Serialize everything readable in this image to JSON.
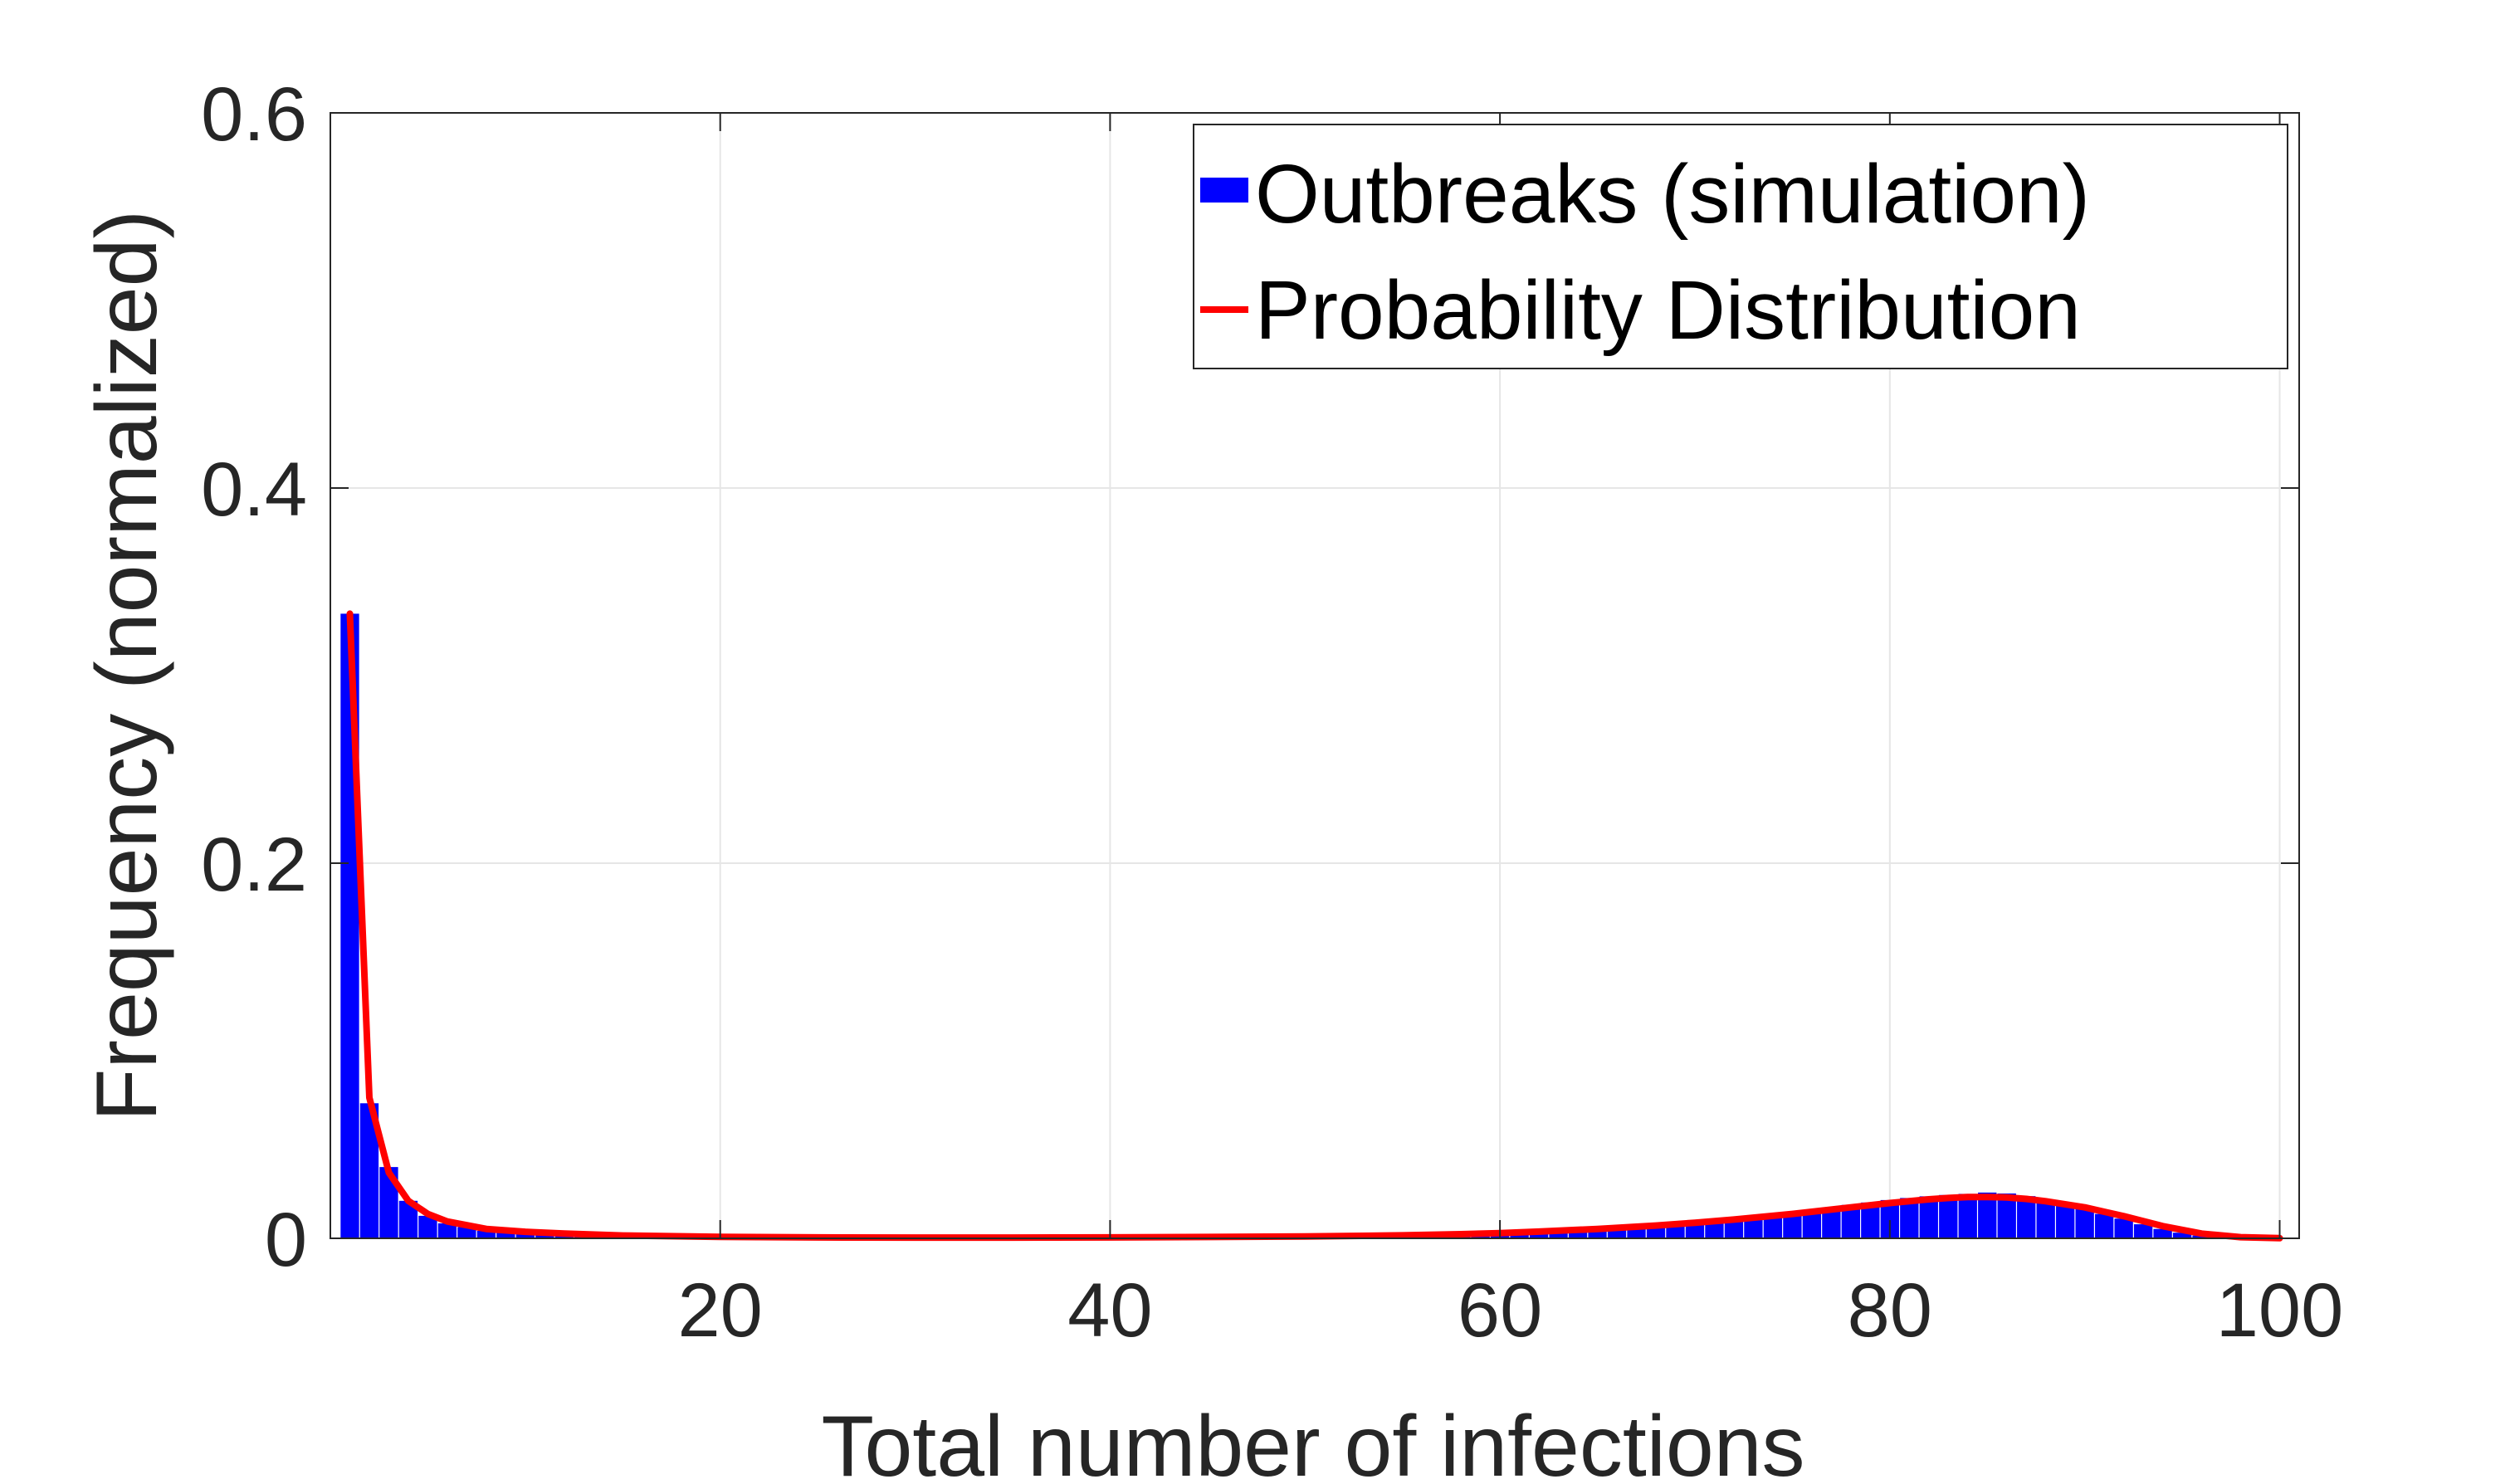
{
  "chart_data": {
    "type": "bar",
    "title": "",
    "xlabel": "Total number of infections",
    "ylabel": "Frequency (normalized)",
    "xlim": [
      0,
      101
    ],
    "ylim": [
      0,
      0.6
    ],
    "xticks": [
      "20",
      "40",
      "60",
      "80",
      "100"
    ],
    "yticks": [
      "0",
      "0.2",
      "0.4",
      "0.6"
    ],
    "grid": true,
    "legend_position": "top-right",
    "colors": {
      "bars": "#0000ff",
      "line": "#ff0000",
      "axis": "#262626",
      "grid": "#e6e6e6"
    },
    "series": [
      {
        "name": "Outbreaks (simulation)",
        "kind": "bar",
        "x": [
          1,
          2,
          3,
          4,
          5,
          6,
          7,
          8,
          9,
          10,
          11,
          12,
          13,
          14,
          15,
          16,
          17,
          18,
          19,
          20,
          21,
          22,
          23,
          24,
          25,
          26,
          27,
          28,
          29,
          30,
          31,
          32,
          33,
          34,
          35,
          36,
          37,
          38,
          39,
          40,
          41,
          42,
          43,
          44,
          45,
          46,
          47,
          48,
          49,
          50,
          51,
          52,
          53,
          54,
          55,
          56,
          57,
          58,
          59,
          60,
          61,
          62,
          63,
          64,
          65,
          66,
          67,
          68,
          69,
          70,
          71,
          72,
          73,
          74,
          75,
          76,
          77,
          78,
          79,
          80,
          81,
          82,
          83,
          84,
          85,
          86,
          87,
          88,
          89,
          90,
          91,
          92,
          93,
          94,
          95,
          96,
          97,
          98,
          99,
          100
        ],
        "values": [
          0.333,
          0.072,
          0.038,
          0.02,
          0.012,
          0.008,
          0.006,
          0.004,
          0.003,
          0.0025,
          0.002,
          0.0016,
          0.0013,
          0.001,
          0.0009,
          0.0008,
          0.0007,
          0.0006,
          0.0005,
          0.0004,
          0.0004,
          0.0003,
          0.0003,
          0.0003,
          0.0002,
          0.0002,
          0.0002,
          0.0002,
          0.0002,
          0.0002,
          0.0002,
          0.0002,
          0.0002,
          0.0002,
          0.0002,
          0.0002,
          0.0002,
          0.0002,
          0.0002,
          0.0003,
          0.0003,
          0.0003,
          0.0003,
          0.0004,
          0.0004,
          0.0005,
          0.0005,
          0.0006,
          0.0007,
          0.0008,
          0.0009,
          0.001,
          0.0011,
          0.0013,
          0.0015,
          0.0017,
          0.0019,
          0.0021,
          0.0024,
          0.0028,
          0.0031,
          0.0036,
          0.004,
          0.0045,
          0.0051,
          0.0057,
          0.0064,
          0.0071,
          0.0079,
          0.0087,
          0.0096,
          0.0106,
          0.0116,
          0.0127,
          0.0139,
          0.0151,
          0.0165,
          0.0178,
          0.0191,
          0.0204,
          0.0215,
          0.0224,
          0.0231,
          0.0237,
          0.0244,
          0.0239,
          0.0225,
          0.02,
          0.018,
          0.0155,
          0.013,
          0.0105,
          0.0075,
          0.005,
          0.003,
          0.0015,
          0.0008,
          0.0004,
          0.0002,
          0.0001
        ]
      },
      {
        "name": "Probability Distribution",
        "kind": "line",
        "x": [
          1,
          2,
          3,
          4,
          5,
          6,
          7,
          8,
          10,
          12,
          15,
          20,
          25,
          30,
          35,
          40,
          45,
          50,
          55,
          58,
          60,
          62,
          65,
          68,
          70,
          72,
          75,
          78,
          80,
          82,
          83,
          84,
          85,
          86,
          87,
          88,
          90,
          92,
          94,
          96,
          98,
          100
        ],
        "values": [
          0.333,
          0.075,
          0.035,
          0.02,
          0.013,
          0.009,
          0.007,
          0.005,
          0.0035,
          0.0025,
          0.0015,
          0.0008,
          0.0005,
          0.0004,
          0.0004,
          0.0005,
          0.0007,
          0.001,
          0.0016,
          0.0022,
          0.0028,
          0.0036,
          0.005,
          0.0068,
          0.0083,
          0.01,
          0.013,
          0.0165,
          0.0188,
          0.0208,
          0.0215,
          0.022,
          0.022,
          0.0218,
          0.021,
          0.0198,
          0.0165,
          0.0118,
          0.0065,
          0.0025,
          0.0006,
          0.0001
        ]
      }
    ]
  }
}
